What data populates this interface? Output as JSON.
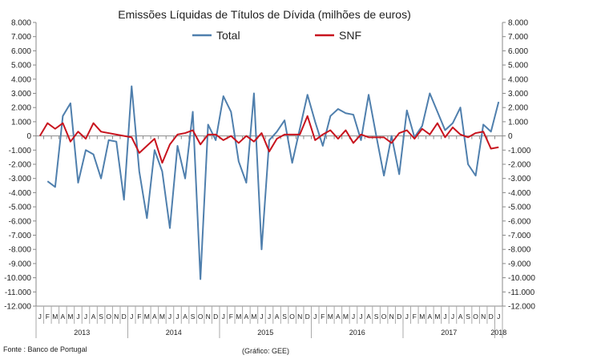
{
  "source_label": "Fonte : Banco de Portugal",
  "credit_label": "(Gráfico: GEE)",
  "chart_data": {
    "type": "line",
    "title": "Emissões Líquidas de Títulos de Dívida (milhões de euros)",
    "ylim": [
      -12000,
      8000
    ],
    "y_ticks": [
      "8.000",
      "7.000",
      "6.000",
      "5.000",
      "4.000",
      "3.000",
      "2.000",
      "1.000",
      "0",
      "-1.000",
      "-2.000",
      "-3.000",
      "-4.000",
      "-5.000",
      "-6.000",
      "-7.000",
      "-8.000",
      "-9.000",
      "-10.000",
      "-11.000",
      "-12.000"
    ],
    "y_tick_values": [
      8000,
      7000,
      6000,
      5000,
      4000,
      3000,
      2000,
      1000,
      0,
      -1000,
      -2000,
      -3000,
      -4000,
      -5000,
      -6000,
      -7000,
      -8000,
      -9000,
      -10000,
      -11000,
      -12000
    ],
    "y_ticks_right": [
      "8.000",
      "7.000",
      "6.000",
      "5.000",
      "4.000",
      "3.000",
      "2.000",
      "1.000",
      "0",
      "-1.000",
      "-2.000",
      "-3.000",
      "-4.000",
      "-5.000",
      "-6.000",
      "-7.000",
      "-8.000",
      "-9.000",
      "-10.000",
      "-11.000",
      "-12.000"
    ],
    "legend_position": "top-center",
    "grid": false,
    "months": [
      "J",
      "F",
      "M",
      "A",
      "M",
      "J",
      "J",
      "A",
      "S",
      "O",
      "N",
      "D",
      "J",
      "F",
      "M",
      "A",
      "M",
      "J",
      "J",
      "A",
      "S",
      "O",
      "N",
      "D",
      "J",
      "F",
      "M",
      "A",
      "M",
      "J",
      "J",
      "A",
      "S",
      "O",
      "N",
      "D",
      "J",
      "F",
      "M",
      "A",
      "M",
      "J",
      "J",
      "A",
      "S",
      "O",
      "N",
      "D",
      "J",
      "F",
      "M",
      "A",
      "M",
      "J",
      "J",
      "A",
      "S",
      "O",
      "N",
      "D",
      "J"
    ],
    "years": [
      {
        "label": "2013",
        "start": 0,
        "count": 12
      },
      {
        "label": "2014",
        "start": 12,
        "count": 12
      },
      {
        "label": "2015",
        "start": 24,
        "count": 12
      },
      {
        "label": "2016",
        "start": 36,
        "count": 12
      },
      {
        "label": "2017",
        "start": 48,
        "count": 12
      },
      {
        "label": "2018",
        "start": 60,
        "count": 1
      }
    ],
    "series": [
      {
        "name": "Total",
        "color": "#4f7fad",
        "values": [
          -3200,
          -3600,
          1400,
          2300,
          -3300,
          -1000,
          -1300,
          -3000,
          -300,
          -400,
          -4500,
          3500,
          -2500,
          -5800,
          -1000,
          -2500,
          -6500,
          -700,
          -3000,
          1700,
          -10100,
          800,
          -300,
          2800,
          1700,
          -1800,
          -3300,
          3000,
          -8000,
          -300,
          300,
          1100,
          -1900,
          500,
          2900,
          1000,
          -700,
          1400,
          1900,
          1600,
          1500,
          -300,
          2900,
          0,
          -2800,
          0,
          -2700,
          1800,
          -100,
          700,
          3000,
          1700,
          400,
          900,
          2000,
          -2000,
          -2800,
          800,
          300,
          2400
        ],
        "x_start": 1
      },
      {
        "name": "SNF",
        "color": "#c8141e",
        "values": [
          0,
          900,
          500,
          900,
          -400,
          300,
          -200,
          900,
          300,
          200,
          100,
          0,
          -100,
          -1200,
          -700,
          -200,
          -1900,
          -600,
          100,
          200,
          400,
          -600,
          100,
          100,
          -300,
          0,
          -500,
          0,
          -400,
          200,
          -1100,
          -200,
          100,
          100,
          100,
          1400,
          -300,
          100,
          400,
          -200,
          400,
          -500,
          100,
          -100,
          -100,
          -100,
          -500,
          200,
          400,
          -200,
          500,
          100,
          900,
          -100,
          600,
          100,
          -100,
          200,
          300,
          -900,
          -800
        ],
        "x_start": 0
      }
    ]
  }
}
